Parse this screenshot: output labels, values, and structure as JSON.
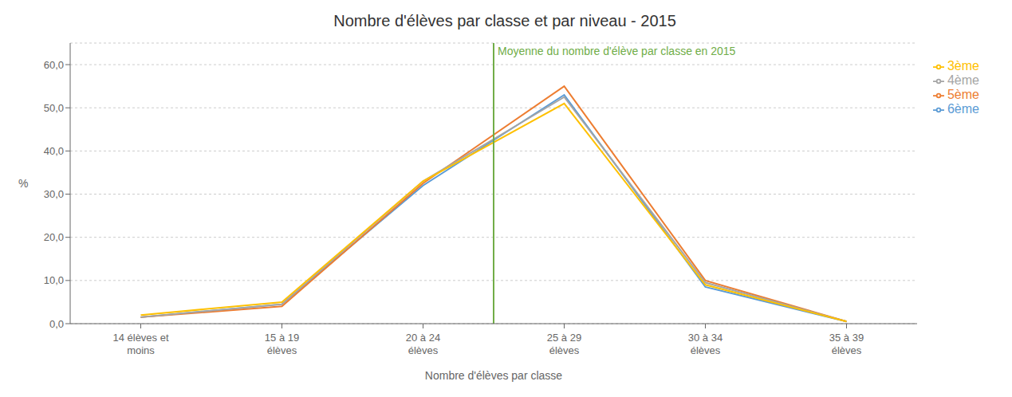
{
  "chart_data": {
    "type": "line",
    "title": "Nombre d'élèves par classe et par niveau - 2015",
    "x_label": "Nombre d'élèves par classe",
    "y_label": "%",
    "categories": [
      "14 élèves et\nmoins",
      "15 à 19\nélèves",
      "20 à 24\nélèves",
      "25 à 29\nélèves",
      "30 à 34\nélèves",
      "35 à 39\nélèves"
    ],
    "series": [
      {
        "name": "6ème",
        "color": "#5b9bd5",
        "values": [
          1.5,
          4.5,
          32.0,
          53.0,
          8.5,
          0.5
        ]
      },
      {
        "name": "5ème",
        "color": "#ed7d31",
        "values": [
          1.5,
          4.0,
          32.5,
          55.0,
          10.0,
          0.5
        ]
      },
      {
        "name": "4ème",
        "color": "#a5a5a5",
        "values": [
          1.5,
          4.5,
          33.0,
          52.5,
          9.5,
          0.5
        ]
      },
      {
        "name": "3ème",
        "color": "#ffc000",
        "values": [
          2.0,
          5.0,
          33.0,
          51.0,
          9.0,
          0.5
        ]
      }
    ],
    "ylim": [
      0,
      65
    ],
    "yticks": [
      {
        "value": 0,
        "label": "0,0"
      },
      {
        "value": 10,
        "label": "10,0"
      },
      {
        "value": 20,
        "label": "20,0"
      },
      {
        "value": 30,
        "label": "30,0"
      },
      {
        "value": 40,
        "label": "40,0"
      },
      {
        "value": 50,
        "label": "50,0"
      },
      {
        "value": 60,
        "label": "60,0"
      }
    ],
    "annotations": [
      {
        "text": "Moyenne du nombre d'élève par classe en 2015",
        "x": 2.5,
        "color": "#70ad47"
      }
    ],
    "grid": true,
    "legend": "right"
  }
}
